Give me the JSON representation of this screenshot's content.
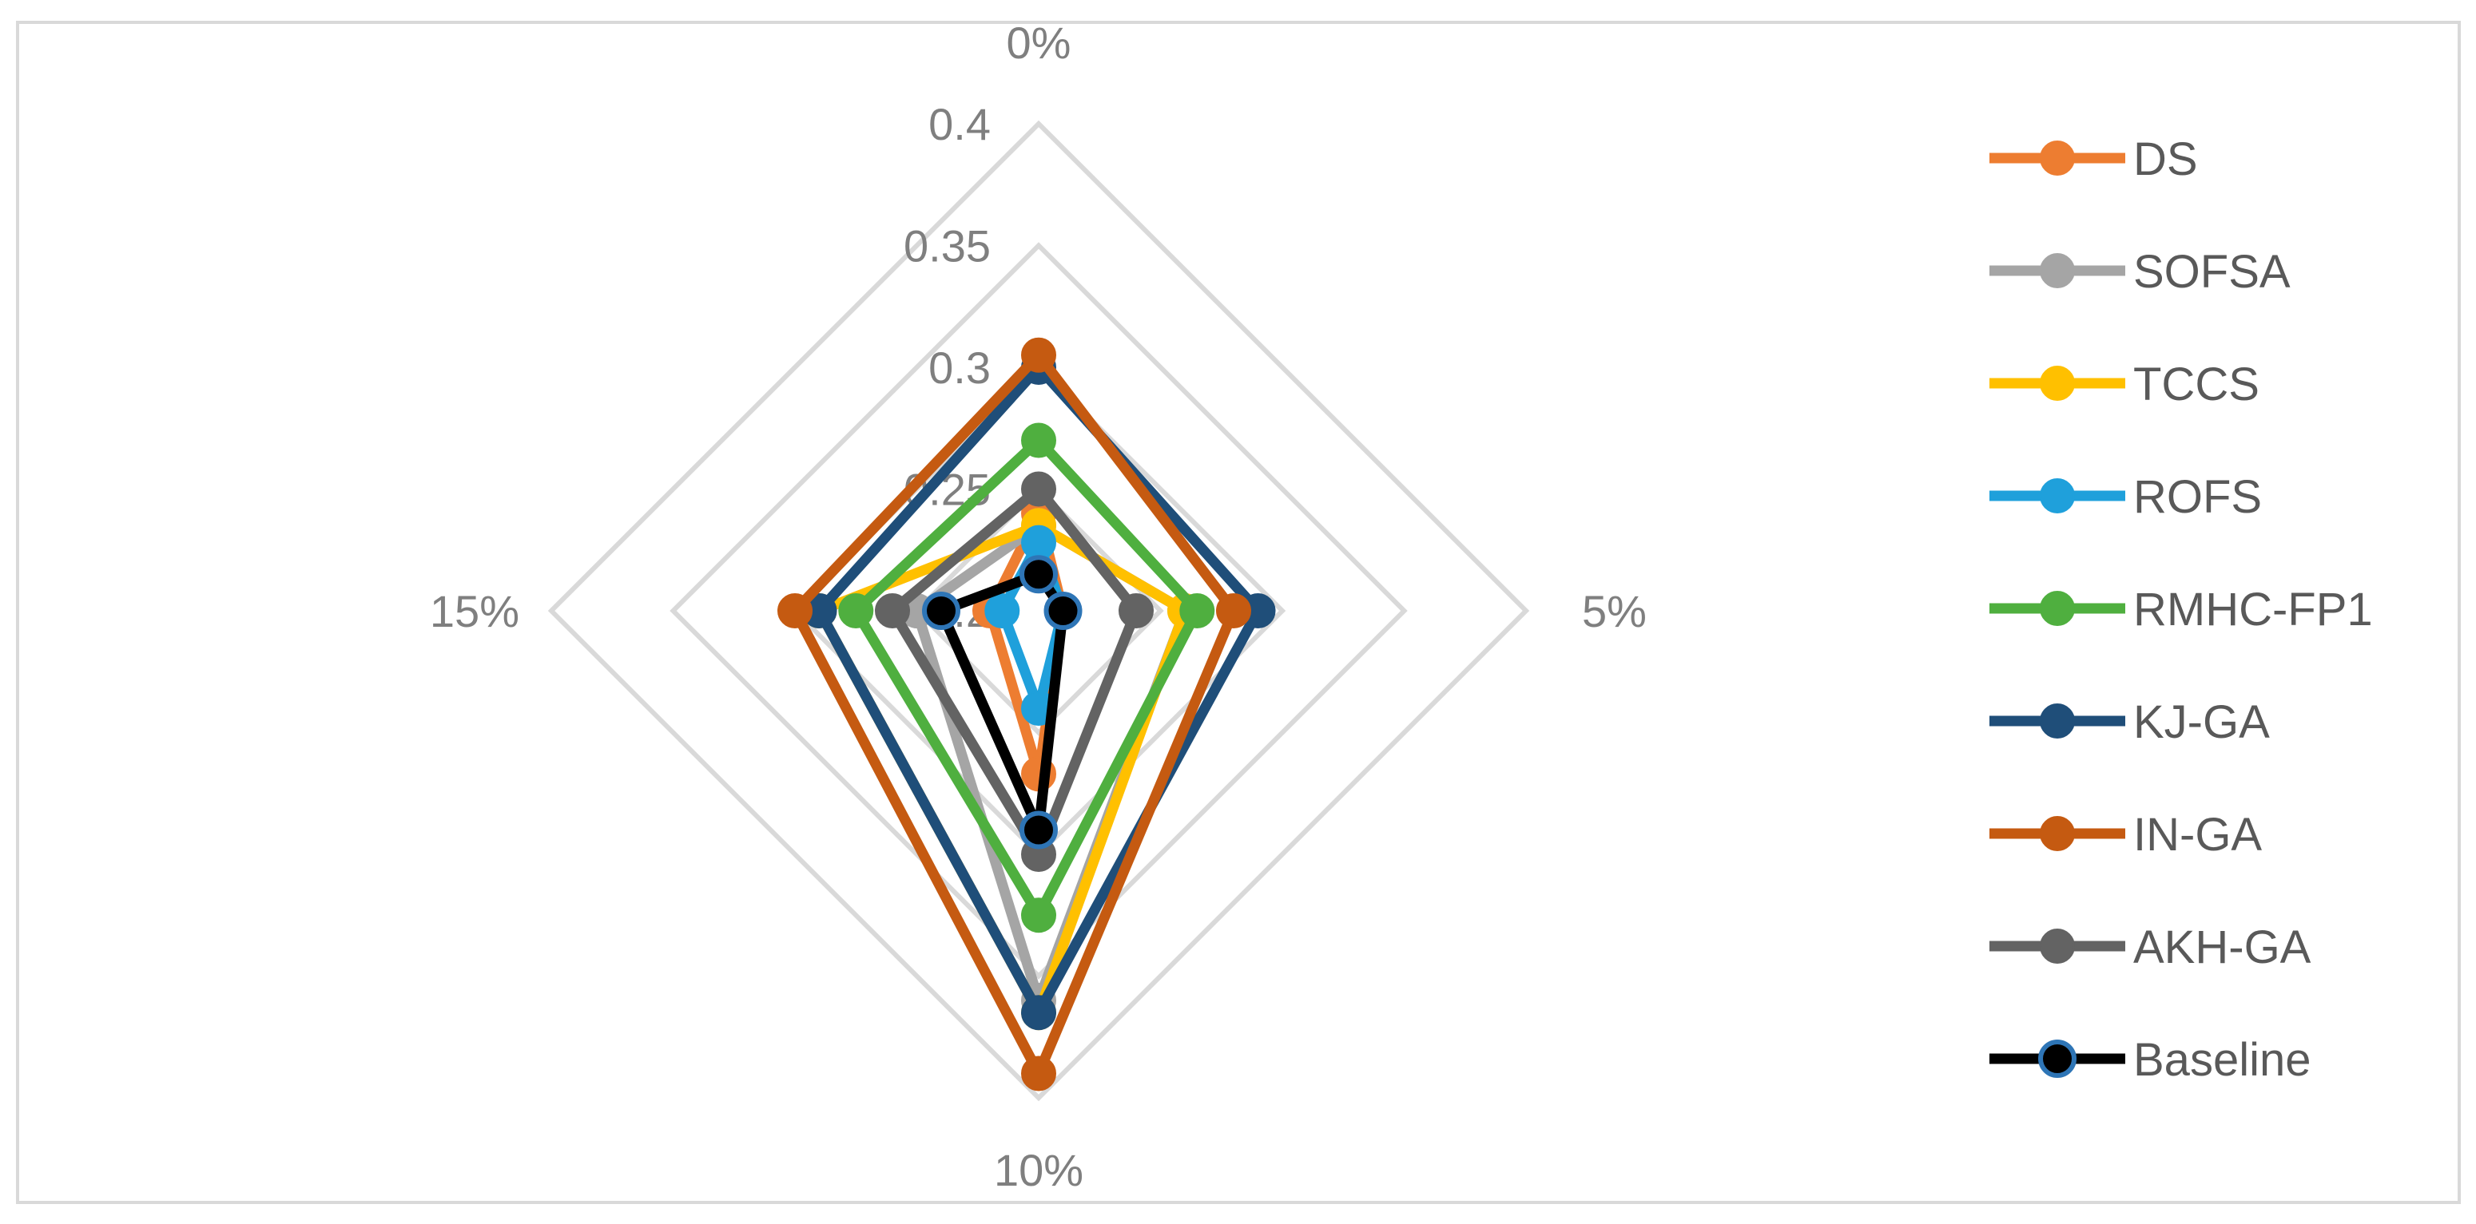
{
  "chart_data": {
    "type": "radar",
    "categories": [
      "0%",
      "5%",
      "10%",
      "15%"
    ],
    "rlim": [
      0.2,
      0.4
    ],
    "ticks": [
      "0.2",
      "0.25",
      "0.3",
      "0.35",
      "0.4"
    ],
    "grid": true,
    "legend_position": "right",
    "series": [
      {
        "name": "DS",
        "color": "#ED7D31",
        "values": [
          0.24,
          0.21,
          0.267,
          0.22
        ]
      },
      {
        "name": "SOFSA",
        "color": "#A5A5A5",
        "values": [
          0.235,
          0.26,
          0.36,
          0.25
        ]
      },
      {
        "name": "TCCS",
        "color": "#FFC000",
        "values": [
          0.235,
          0.26,
          0.365,
          0.29
        ]
      },
      {
        "name": "ROFS",
        "color": "#1FA0DB",
        "values": [
          0.228,
          0.21,
          0.24,
          0.215
        ]
      },
      {
        "name": "RMHC-FP1",
        "color": "#4FAF3F",
        "values": [
          0.27,
          0.265,
          0.325,
          0.275
        ]
      },
      {
        "name": "KJ-GA",
        "color": "#1F4E79",
        "values": [
          0.3,
          0.29,
          0.365,
          0.29
        ]
      },
      {
        "name": "IN-GA",
        "color": "#C55A11",
        "values": [
          0.305,
          0.28,
          0.39,
          0.3
        ]
      },
      {
        "name": "AKH-GA",
        "color": "#636363",
        "values": [
          0.25,
          0.24,
          0.3,
          0.26
        ]
      },
      {
        "name": "Baseline",
        "color": "#000000",
        "marker_edge": "#2E75B6",
        "values": [
          0.215,
          0.21,
          0.29,
          0.24
        ]
      }
    ]
  }
}
